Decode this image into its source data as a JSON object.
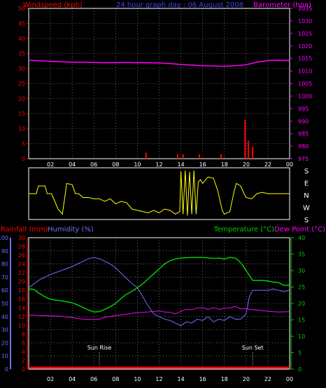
{
  "header": {
    "left_label": "Windspeed (kph)",
    "center_label": "24 hour graph day : 06 August 2008",
    "right_label": "Barometer (hpa)"
  },
  "lower_header": {
    "rainfall_label": "Rainfall (mm)",
    "humidity_label": "Humidity (%)",
    "temperature_label": "Temperature (°C)",
    "dewpoint_label": "Dew Point (°C)"
  },
  "colors": {
    "wind": "#ff0000",
    "barometer": "#ff00ff",
    "direction": "#ffff00",
    "humidity": "#7070ff",
    "temperature": "#00cc00",
    "dewpoint": "#ff00ff",
    "rainfall": "#ff0000",
    "frame": "#ffffff",
    "grid": "#aaaaaa"
  },
  "chart_data": [
    {
      "type": "line",
      "name": "windspeed-barometer",
      "x_ticks": [
        "02",
        "04",
        "06",
        "08",
        "10",
        "12",
        "14",
        "16",
        "18",
        "20",
        "22",
        "00"
      ],
      "x_range": [
        0,
        24
      ],
      "grid": true,
      "left_axis": {
        "label": "Windspeed (kph)",
        "range": [
          0,
          50
        ],
        "ticks": [
          "0",
          "5",
          "10",
          "15",
          "20",
          "25",
          "30",
          "35",
          "40",
          "45",
          "50"
        ]
      },
      "right_axis": {
        "label": "Barometer (hpa)",
        "range": [
          975,
          1035
        ],
        "ticks": [
          "975",
          "980",
          "985",
          "990",
          "995",
          "1000",
          "1005",
          "1010",
          "1015",
          "1020",
          "1025",
          "1030",
          "1035"
        ]
      },
      "barometer": {
        "x": [
          0,
          1,
          2,
          3,
          4,
          5,
          6,
          7,
          8,
          9,
          10,
          11,
          12,
          13,
          14,
          15,
          16,
          17,
          18,
          19,
          20,
          21,
          22,
          23,
          24
        ],
        "y": [
          1014.3,
          1014.1,
          1013.9,
          1013.7,
          1013.5,
          1013.5,
          1013.4,
          1013.3,
          1013.3,
          1013.4,
          1013.3,
          1013.3,
          1013.2,
          1013.0,
          1012.6,
          1012.4,
          1012.1,
          1012.0,
          1011.9,
          1012.1,
          1012.5,
          1013.5,
          1014.2,
          1014.3,
          1014.2
        ]
      },
      "windspeed_gusts": {
        "x": [
          10.8,
          13.7,
          14.2,
          15.7,
          17.7,
          19.9,
          20.2,
          20.6
        ],
        "y": [
          2,
          1.5,
          1.5,
          1.5,
          1.5,
          13,
          6,
          4
        ]
      }
    },
    {
      "type": "line",
      "name": "wind-direction",
      "axis_labels": [
        "S",
        "E",
        "N",
        "W",
        "S"
      ],
      "range": [
        0,
        360
      ],
      "x": [
        0,
        0.7,
        0.9,
        1.5,
        1.7,
        2.1,
        2.4,
        2.7,
        2.9,
        3.1,
        3.5,
        4.0,
        4.3,
        4.6,
        5.0,
        5.5,
        6.0,
        6.5,
        7.0,
        7.5,
        8.0,
        8.5,
        9.0,
        9.5,
        10.0,
        10.5,
        11.0,
        11.5,
        12.0,
        12.5,
        13.0,
        13.5,
        13.9,
        14.0,
        14.2,
        14.4,
        14.6,
        14.8,
        15.0,
        15.2,
        15.4,
        15.6,
        15.8,
        16.0,
        16.2,
        16.5,
        17.0,
        17.4,
        17.8,
        18.0,
        18.5,
        18.9,
        19.1,
        19.5,
        19.8,
        20.0,
        20.5,
        21.0,
        21.5,
        22.0,
        22.5,
        23.0,
        24.0
      ],
      "y": [
        180,
        180,
        240,
        240,
        180,
        180,
        120,
        60,
        40,
        20,
        260,
        250,
        180,
        180,
        150,
        150,
        140,
        140,
        120,
        140,
        100,
        120,
        110,
        60,
        50,
        40,
        30,
        50,
        30,
        60,
        50,
        20,
        40,
        355,
        20,
        360,
        10,
        350,
        20,
        360,
        20,
        270,
        290,
        260,
        280,
        310,
        300,
        200,
        50,
        20,
        40,
        200,
        260,
        240,
        180,
        150,
        140,
        180,
        190,
        180,
        180,
        180,
        180
      ]
    },
    {
      "type": "line",
      "name": "rainfall-humidity-temperature-dewpoint",
      "x_ticks": [
        "02",
        "04",
        "06",
        "08",
        "10",
        "12",
        "14",
        "16",
        "18",
        "20",
        "22",
        "00"
      ],
      "x_range": [
        0,
        24
      ],
      "grid": true,
      "humidity_axis": {
        "label": "Humidity (%)",
        "range": [
          0,
          100
        ],
        "ticks": [
          "0",
          "10",
          "20",
          "30",
          "40",
          "50",
          "60",
          "70",
          "80",
          "90",
          "100"
        ]
      },
      "rainfall_axis": {
        "label": "Rainfall (mm)",
        "range": [
          0,
          30
        ],
        "ticks": [
          "0",
          "2",
          "4",
          "6",
          "8",
          "10",
          "12",
          "14",
          "16",
          "18",
          "20",
          "22",
          "24",
          "26",
          "28",
          "30"
        ]
      },
      "temperature_axis": {
        "label": "Temperature (°C)",
        "range": [
          0,
          40
        ],
        "ticks": [
          "0",
          "5",
          "10",
          "15",
          "20",
          "25",
          "30",
          "35",
          "40"
        ]
      },
      "annotations": [
        {
          "text": "Sun Rise",
          "x": 6.5
        },
        {
          "text": "Sun Set",
          "x": 20.6
        }
      ],
      "humidity": {
        "x": [
          0,
          1,
          2,
          3,
          4,
          5,
          5.5,
          6,
          6.5,
          7,
          7.5,
          8,
          8.5,
          9,
          9.5,
          10,
          10.5,
          11,
          11.5,
          12,
          12.5,
          13,
          13.5,
          14,
          14.5,
          15,
          15.5,
          16,
          16.5,
          17,
          17.5,
          18,
          18.5,
          19,
          19.5,
          20,
          20.3,
          20.6,
          21,
          21.5,
          22,
          22.5,
          23,
          23.5,
          24
        ],
        "y": [
          62,
          68,
          72,
          75,
          78,
          82,
          84,
          85,
          84,
          82,
          80,
          77,
          73,
          69,
          65,
          62,
          55,
          48,
          42,
          40,
          38,
          37,
          35,
          33,
          36,
          35,
          38,
          37,
          40,
          36,
          38,
          37,
          40,
          38,
          38,
          42,
          55,
          60,
          60,
          60,
          60,
          61,
          60,
          59,
          60
        ]
      },
      "temperature": {
        "x": [
          0,
          0.5,
          1,
          1.5,
          2,
          2.5,
          3,
          3.5,
          4,
          4.5,
          5,
          5.5,
          6,
          6.5,
          7,
          7.5,
          8,
          8.5,
          9,
          9.5,
          10,
          10.5,
          11,
          11.5,
          12,
          12.5,
          13,
          13.5,
          14,
          15,
          16,
          17,
          17.5,
          18,
          18.5,
          19,
          19.3,
          19.6,
          20,
          20.3,
          20.6,
          21,
          21.5,
          22,
          22.5,
          23,
          23.5,
          24
        ],
        "y": [
          24.5,
          24.2,
          23,
          22,
          21.3,
          21,
          20.8,
          20.5,
          20.2,
          19.5,
          18.8,
          18,
          17.4,
          17.5,
          18.2,
          19,
          20,
          21.5,
          22.8,
          23.7,
          24.8,
          26,
          27.5,
          29,
          30.5,
          32,
          33,
          33.5,
          33.8,
          34,
          34,
          33.7,
          33.8,
          33.5,
          34,
          33.8,
          33,
          32,
          30,
          28.5,
          27,
          27,
          27,
          26.8,
          26.5,
          26.3,
          25.5,
          25.5
        ]
      },
      "dewpoint": {
        "x": [
          0,
          1,
          2,
          3,
          4,
          5,
          6,
          6.5,
          7,
          8,
          9,
          10,
          11,
          11.5,
          12,
          12.5,
          13,
          13.5,
          14,
          14.5,
          15,
          15.5,
          16,
          16.5,
          17,
          17.5,
          18,
          18.5,
          19,
          19.5,
          20,
          20.5,
          21,
          21.5,
          22,
          23,
          24
        ],
        "y": [
          16.5,
          16.3,
          16.2,
          16.1,
          15.7,
          15.2,
          15.1,
          15.2,
          15.8,
          16.3,
          16.7,
          17.2,
          17.4,
          17.6,
          17.7,
          17.4,
          17.3,
          16.8,
          17.6,
          18.2,
          18.1,
          18.6,
          18.7,
          18.2,
          18.7,
          18.2,
          18.5,
          18.6,
          19.1,
          18.3,
          18.4,
          18.1,
          18.0,
          17.8,
          17.6,
          17.4,
          17.5
        ]
      },
      "rainfall": {
        "x": [
          0,
          24
        ],
        "y": [
          0,
          0
        ]
      }
    }
  ]
}
